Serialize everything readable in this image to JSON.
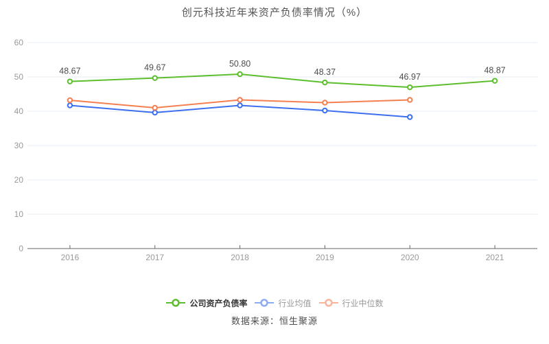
{
  "title": "创元科技近年来资产负债率情况（%）",
  "source": "数据来源：恒生聚源",
  "chart_data": {
    "type": "line",
    "categories": [
      "2016",
      "2017",
      "2018",
      "2019",
      "2020",
      "2021"
    ],
    "series": [
      {
        "name": "公司资产负债率",
        "color": "#5cbe2d",
        "values": [
          48.67,
          49.67,
          50.8,
          48.37,
          46.97,
          48.87
        ],
        "point_labels": [
          "48.67",
          "49.67",
          "50.80",
          "48.37",
          "46.97",
          "48.87"
        ],
        "legend_active": true
      },
      {
        "name": "行业均值",
        "color": "#3c6ef0",
        "values": [
          41.7,
          39.6,
          41.7,
          40.2,
          38.3,
          null
        ],
        "point_labels": null,
        "legend_active": false
      },
      {
        "name": "行业中位数",
        "color": "#f57f51",
        "values": [
          43.2,
          41.0,
          43.3,
          42.5,
          43.3,
          null
        ],
        "point_labels": null,
        "legend_active": false
      }
    ],
    "ylim": [
      0,
      60
    ],
    "yticks": [
      0,
      10,
      20,
      30,
      40,
      50,
      60
    ],
    "grid": true,
    "legend_position": "bottom",
    "axis_colors": {
      "axis_line": "#666666",
      "tick_label": "#999999",
      "grid_line": "#e4ebf4",
      "point_label": "#4d4d4d"
    }
  }
}
